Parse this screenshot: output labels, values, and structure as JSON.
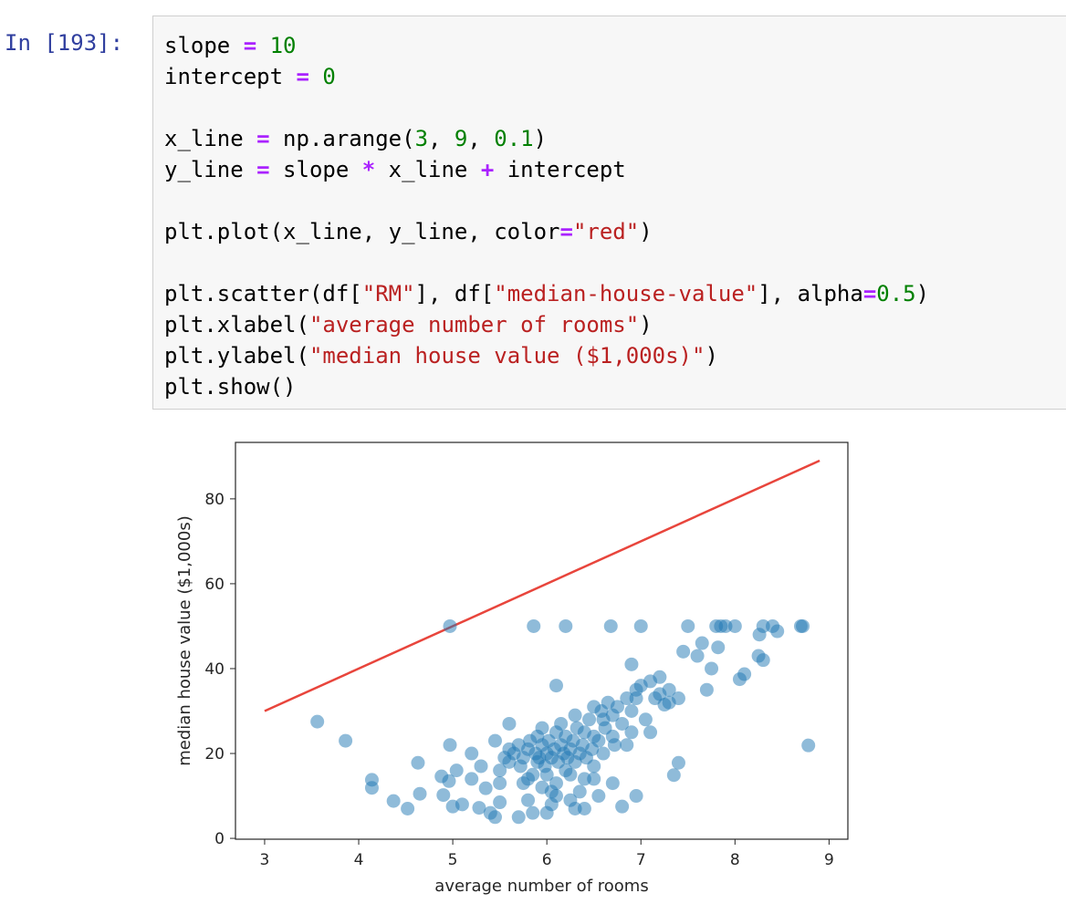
{
  "prompt": "In [193]:",
  "code": [
    [
      {
        "text": "slope ",
        "color": "#000000"
      },
      {
        "text": "=",
        "color": "#aa22ff"
      },
      {
        "text": " ",
        "color": "#000000"
      },
      {
        "text": "10",
        "color": "#008000"
      }
    ],
    [
      {
        "text": "intercept ",
        "color": "#000000"
      },
      {
        "text": "=",
        "color": "#aa22ff"
      },
      {
        "text": " ",
        "color": "#000000"
      },
      {
        "text": "0",
        "color": "#008000"
      }
    ],
    [],
    [
      {
        "text": "x_line ",
        "color": "#000000"
      },
      {
        "text": "=",
        "color": "#aa22ff"
      },
      {
        "text": " np.arange(",
        "color": "#000000"
      },
      {
        "text": "3",
        "color": "#008000"
      },
      {
        "text": ", ",
        "color": "#000000"
      },
      {
        "text": "9",
        "color": "#008000"
      },
      {
        "text": ", ",
        "color": "#000000"
      },
      {
        "text": "0.1",
        "color": "#008000"
      },
      {
        "text": ")",
        "color": "#000000"
      }
    ],
    [
      {
        "text": "y_line ",
        "color": "#000000"
      },
      {
        "text": "=",
        "color": "#aa22ff"
      },
      {
        "text": " slope ",
        "color": "#000000"
      },
      {
        "text": "*",
        "color": "#aa22ff"
      },
      {
        "text": " x_line ",
        "color": "#000000"
      },
      {
        "text": "+",
        "color": "#aa22ff"
      },
      {
        "text": " intercept",
        "color": "#000000"
      }
    ],
    [],
    [
      {
        "text": "plt.plot(x_line, y_line, color",
        "color": "#000000"
      },
      {
        "text": "=",
        "color": "#aa22ff"
      },
      {
        "text": "\"red\"",
        "color": "#ba2121"
      },
      {
        "text": ")",
        "color": "#000000"
      }
    ],
    [],
    [
      {
        "text": "plt.scatter(df[",
        "color": "#000000"
      },
      {
        "text": "\"RM\"",
        "color": "#ba2121"
      },
      {
        "text": "], df[",
        "color": "#000000"
      },
      {
        "text": "\"median-house-value\"",
        "color": "#ba2121"
      },
      {
        "text": "], alpha",
        "color": "#000000"
      },
      {
        "text": "=",
        "color": "#aa22ff"
      },
      {
        "text": "0.5",
        "color": "#008000"
      },
      {
        "text": ")",
        "color": "#000000"
      }
    ],
    [
      {
        "text": "plt.xlabel(",
        "color": "#000000"
      },
      {
        "text": "\"average number of rooms\"",
        "color": "#ba2121"
      },
      {
        "text": ")",
        "color": "#000000"
      }
    ],
    [
      {
        "text": "plt.ylabel(",
        "color": "#000000"
      },
      {
        "text": "\"median house value ($1,000s)\"",
        "color": "#ba2121"
      },
      {
        "text": ")",
        "color": "#000000"
      }
    ],
    [
      {
        "text": "plt.show()",
        "color": "#000000"
      }
    ]
  ],
  "chart_data": {
    "type": "scatter",
    "xlabel": "average number of rooms",
    "ylabel": "median house value ($1,000s)",
    "xlim": [
      2.69,
      9.2
    ],
    "ylim": [
      -0.2,
      93.3
    ],
    "xticks": [
      3,
      4,
      5,
      6,
      7,
      8,
      9
    ],
    "yticks": [
      0,
      20,
      40,
      60,
      80
    ],
    "series": [
      {
        "type": "line",
        "color": "#e8453c",
        "x": [
          3,
          8.9
        ],
        "values": [
          30,
          89
        ]
      },
      {
        "type": "scatter",
        "color": "#1f77b4",
        "alpha": 0.5,
        "x": [
          3.56,
          3.86,
          4.14,
          4.14,
          4.37,
          4.52,
          4.63,
          4.65,
          4.88,
          4.9,
          4.96,
          4.97,
          4.97,
          5.0,
          5.04,
          5.1,
          5.2,
          5.28,
          5.35,
          5.4,
          5.45,
          5.5,
          5.5,
          5.6,
          5.6,
          5.7,
          5.75,
          5.8,
          5.85,
          5.86,
          5.9,
          5.95,
          6.0,
          6.05,
          6.1,
          6.1,
          6.2,
          6.25,
          6.3,
          6.35,
          6.4,
          6.5,
          6.5,
          6.6,
          6.68,
          6.7,
          6.8,
          6.9,
          6.95,
          7.0,
          7.1,
          7.2,
          7.3,
          7.35,
          7.4,
          7.45,
          7.5,
          7.6,
          7.65,
          7.7,
          7.75,
          7.8,
          7.82,
          7.85,
          7.9,
          8.0,
          8.05,
          8.1,
          8.25,
          8.26,
          8.3,
          8.3,
          8.4,
          8.45,
          8.7,
          8.72,
          8.78,
          7.25,
          7.15,
          6.9,
          7.05,
          6.85,
          6.95,
          5.6,
          5.65,
          5.7,
          5.72,
          5.75,
          5.8,
          5.82,
          5.85,
          5.88,
          5.9,
          5.92,
          5.95,
          5.98,
          6.0,
          6.02,
          6.05,
          6.08,
          6.1,
          6.12,
          6.15,
          6.18,
          6.2,
          6.22,
          6.25,
          6.28,
          6.3,
          6.32,
          6.35,
          6.38,
          6.4,
          6.42,
          6.45,
          6.48,
          6.5,
          6.55,
          6.58,
          6.6,
          6.62,
          6.65,
          6.7,
          6.72,
          6.75,
          6.8,
          6.85,
          6.9,
          5.5,
          5.55,
          5.45,
          5.3,
          5.2,
          6.0,
          6.1,
          6.2,
          6.4,
          6.7,
          6.3,
          6.5,
          7.0,
          7.2,
          7.1,
          6.95,
          7.3,
          7.4,
          5.95,
          6.15,
          5.8,
          6.05,
          6.25,
          6.55
        ],
        "values": [
          27.5,
          23,
          13.8,
          11.9,
          8.8,
          7,
          17.8,
          10.5,
          14.6,
          10.2,
          13.5,
          50,
          22,
          7.5,
          16,
          8,
          14,
          7.2,
          11.8,
          6,
          5,
          8.5,
          13,
          21,
          27,
          5,
          13,
          9,
          6,
          50,
          18,
          12,
          6,
          8,
          36,
          10,
          50,
          15,
          7,
          11,
          7,
          17,
          14,
          28,
          50,
          24,
          7.5,
          41,
          10,
          50,
          25,
          38,
          35,
          14.9,
          17.8,
          44,
          50,
          43,
          46,
          35,
          40,
          50,
          45,
          50,
          50,
          50,
          37.5,
          38.7,
          43,
          48,
          50,
          42,
          50,
          48.8,
          50,
          50,
          21.9,
          31.5,
          33,
          30,
          28,
          22,
          35,
          18,
          20,
          22,
          17,
          19,
          21,
          23,
          15,
          20,
          24,
          19,
          22,
          17,
          20,
          23,
          19,
          21,
          25,
          18,
          22,
          20,
          24,
          19,
          21,
          23,
          18,
          26,
          20,
          22,
          25,
          19,
          28,
          21,
          24,
          23,
          30,
          20,
          26,
          32,
          29,
          22,
          31,
          27,
          33,
          25,
          16,
          19,
          23,
          17,
          20,
          15,
          13,
          16,
          14,
          13,
          29,
          31,
          36,
          34,
          37,
          33,
          32,
          33,
          26,
          27,
          14,
          11,
          9,
          10
        ]
      }
    ]
  }
}
